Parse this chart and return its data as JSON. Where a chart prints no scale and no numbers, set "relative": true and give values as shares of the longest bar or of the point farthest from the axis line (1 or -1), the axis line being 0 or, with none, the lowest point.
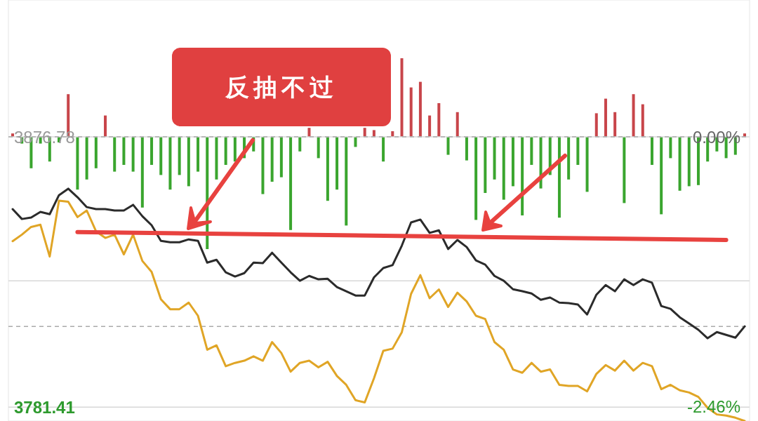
{
  "chart_data": [
    {
      "type": "line",
      "categories": [
        null,
        null,
        null,
        null,
        null,
        null,
        null,
        null,
        null,
        null,
        null,
        null,
        null,
        null,
        null,
        null,
        null,
        null,
        null,
        null,
        null,
        null,
        null,
        null,
        null,
        null,
        null,
        null,
        null,
        null,
        null,
        null,
        null,
        null,
        null,
        null,
        null,
        null,
        null,
        null,
        null,
        null,
        null,
        null,
        null,
        null,
        null,
        null,
        null,
        null,
        null,
        null,
        null,
        null,
        null,
        null,
        null,
        null,
        null,
        null,
        null,
        null,
        null,
        null,
        null,
        null,
        null,
        null,
        null,
        null,
        null,
        null,
        null,
        null,
        null,
        null,
        null,
        null,
        null,
        null
      ],
      "ylim": [
        3776.5,
        3925.1
      ],
      "yticks": [
        3781.41,
        {
          "value": 3826.0,
          "label": null
        },
        3876.78
      ],
      "y2lim": [
        -2.59,
        1.25
      ],
      "y2ticks": [
        {
          "value": -2.46,
          "label": "-2.46%"
        },
        {
          "value": 0,
          "label": "0.00%"
        }
      ],
      "grid": "y",
      "series": [
        {
          "color": "#2b2b2b",
          "values": [
            3851.3,
            3847.8,
            3848.3,
            3850.3,
            3849.5,
            3856.2,
            3858.5,
            3855.5,
            3852.0,
            3851.3,
            3851.3,
            3850.8,
            3850.8,
            3852.8,
            3848.8,
            3845.6,
            3840.1,
            3839.6,
            3839.6,
            3840.6,
            3840.1,
            3832.4,
            3833.4,
            3829.0,
            3827.5,
            3828.7,
            3832.4,
            3832.2,
            3835.9,
            3832.4,
            3829.0,
            3826.0,
            3827.7,
            3826.5,
            3826.7,
            3823.8,
            3822.3,
            3820.8,
            3820.8,
            3827.2,
            3830.5,
            3831.5,
            3838.4,
            3846.6,
            3847.6,
            3842.9,
            3843.8,
            3837.2,
            3840.4,
            3837.9,
            3833.2,
            3831.7,
            3827.7,
            3826.0,
            3823.0,
            3822.3,
            3821.5,
            3819.3,
            3820.1,
            3818.3,
            3818.1,
            3817.6,
            3814.1,
            3821.1,
            3824.5,
            3822.3,
            3826.5,
            3824.5,
            3826.5,
            3825.3,
            3817.1,
            3816.1,
            3813.1,
            3810.9,
            3808.7,
            3805.7,
            3807.9,
            3806.9,
            3805.9,
            3809.9
          ]
        },
        {
          "color": "#e0a526",
          "axis": "y2",
          "values": [
            -0.95,
            -0.89,
            -0.82,
            -0.8,
            -1.09,
            -0.58,
            -0.59,
            -0.73,
            -0.67,
            -0.86,
            -0.92,
            -0.89,
            -1.07,
            -0.89,
            -1.13,
            -1.23,
            -1.48,
            -1.57,
            -1.57,
            -1.51,
            -1.63,
            -1.94,
            -1.9,
            -2.09,
            -2.06,
            -2.04,
            -2.0,
            -2.04,
            -1.87,
            -1.97,
            -2.14,
            -2.06,
            -2.04,
            -2.1,
            -2.05,
            -2.18,
            -2.26,
            -2.4,
            -2.42,
            -2.2,
            -1.95,
            -1.93,
            -1.78,
            -1.43,
            -1.26,
            -1.47,
            -1.39,
            -1.55,
            -1.42,
            -1.5,
            -1.63,
            -1.66,
            -1.87,
            -1.94,
            -2.12,
            -2.15,
            -2.06,
            -2.14,
            -2.12,
            -2.26,
            -2.27,
            -2.27,
            -2.32,
            -2.16,
            -2.08,
            -2.13,
            -2.04,
            -2.13,
            -2.06,
            -2.09,
            -2.3,
            -2.26,
            -2.31,
            -2.33,
            -2.37,
            -2.47,
            -2.53,
            -2.54,
            -2.56,
            -2.59
          ]
        },
        {
          "color": "#e8423f",
          "values": [
            null,
            null,
            null,
            null,
            null,
            null,
            null,
            3843.2,
            null,
            null,
            null,
            null,
            null,
            null,
            null,
            null,
            null,
            null,
            null,
            null,
            null,
            null,
            null,
            null,
            null,
            null,
            null,
            null,
            null,
            null,
            null,
            null,
            null,
            null,
            null,
            null,
            null,
            null,
            null,
            null,
            null,
            null,
            null,
            null,
            null,
            null,
            null,
            null,
            null,
            null,
            null,
            null,
            null,
            null,
            null,
            null,
            null,
            null,
            null,
            null,
            null,
            null,
            null,
            null,
            null,
            null,
            null,
            null,
            null,
            null,
            null,
            null,
            null,
            null,
            null,
            null,
            null,
            3840.4,
            null,
            null
          ]
        }
      ],
      "ref_lines": [
        {
          "axis": "y",
          "value": 3876.78,
          "color": "#aaaaaa",
          "line_style": "dashed"
        },
        {
          "axis": "y",
          "value": 3809.9,
          "color": "#aaaaaa",
          "line_style": "dashed"
        }
      ],
      "annotations": [
        "反抽不过"
      ]
    },
    {
      "type": "bar",
      "relative": true,
      "categories": [
        null,
        null,
        null,
        null,
        null,
        null,
        null,
        null,
        null,
        null,
        null,
        null,
        null,
        null,
        null,
        null,
        null,
        null,
        null,
        null,
        null,
        null,
        null,
        null,
        null,
        null,
        null,
        null,
        null,
        null,
        null,
        null,
        null,
        null,
        null,
        null,
        null,
        null,
        null,
        null,
        null,
        null,
        null,
        null,
        null,
        null,
        null,
        null,
        null,
        null,
        null,
        null,
        null,
        null,
        null,
        null,
        null,
        null,
        null,
        null,
        null,
        null,
        null,
        null,
        null,
        null,
        null,
        null,
        null,
        null,
        null,
        null,
        null,
        null,
        null,
        null,
        null,
        null,
        null,
        null
      ],
      "series": [
        {
          "color": "#c8454a",
          "values": [
            0.03,
            null,
            null,
            null,
            null,
            null,
            0.38,
            null,
            null,
            null,
            0.19,
            null,
            null,
            null,
            null,
            null,
            null,
            null,
            null,
            null,
            null,
            null,
            null,
            null,
            null,
            null,
            null,
            null,
            null,
            null,
            null,
            null,
            0.08,
            null,
            null,
            null,
            null,
            null,
            0.08,
            0.06,
            null,
            0.05,
            0.7,
            0.44,
            0.49,
            0.19,
            0.3,
            null,
            0.22,
            null,
            null,
            null,
            null,
            null,
            null,
            null,
            null,
            null,
            null,
            null,
            null,
            null,
            null,
            0.21,
            0.34,
            0.22,
            null,
            0.38,
            0.29,
            null,
            null,
            null,
            null,
            null,
            null,
            null,
            null,
            null,
            null,
            0.03
          ]
        },
        {
          "color": "#3aa52e",
          "values": [
            null,
            -0.06,
            -0.28,
            -0.06,
            -0.22,
            -0.05,
            null,
            -0.47,
            -0.38,
            -0.28,
            null,
            -0.31,
            -0.25,
            -0.31,
            -0.63,
            -0.25,
            -0.34,
            -0.47,
            -0.34,
            -0.44,
            -0.31,
            -1,
            -0.38,
            -0.25,
            -0.22,
            -0.19,
            -0.13,
            -0.51,
            -0.4,
            -0.36,
            -0.83,
            -0.13,
            null,
            -0.19,
            -0.57,
            -0.47,
            -0.79,
            -0.09,
            null,
            null,
            -0.22,
            null,
            null,
            null,
            null,
            null,
            null,
            -0.16,
            null,
            -0.21,
            -0.74,
            -0.5,
            -0.38,
            -0.56,
            -0.44,
            -0.7,
            -0.25,
            -0.46,
            -0.34,
            -0.72,
            -0.38,
            -0.25,
            -0.49,
            null,
            null,
            null,
            -0.59,
            null,
            null,
            -0.25,
            -0.69,
            -0.19,
            -0.48,
            -0.44,
            -0.43,
            -0.22,
            -0.13,
            -0.19,
            -0.16,
            null
          ]
        }
      ]
    }
  ]
}
